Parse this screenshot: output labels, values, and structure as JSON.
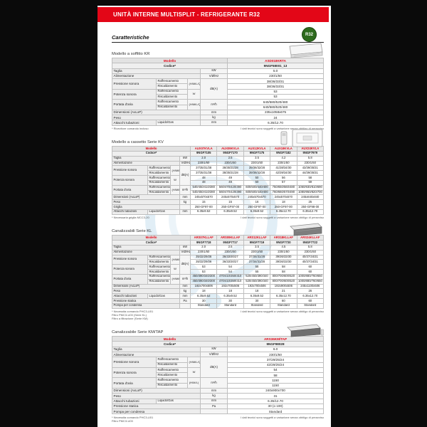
{
  "banner": {
    "title": "UNITÀ INTERNE MULTISPLIT - REFRIGERANTE R32"
  },
  "badge": {
    "label": "R32"
  },
  "heading": "Caratteristiche",
  "footnote_right": "I dati tecnici sono soggetti a variazione senza obbligo di preavviso",
  "labels": {
    "model": "Modello",
    "code": "Codice*"
  },
  "colors": {
    "accent_red": "#e30617",
    "badge_green": "#2e6b1e",
    "watermark_blue": "#bcd9ea",
    "page_bg": "#ffffff",
    "outer_bg": "#0a0a0a"
  },
  "sections": [
    {
      "title": "Modello a soffitto KR",
      "image": "ceiling-unit",
      "models": [
        "ASD018KRTA"
      ],
      "codes": [
        "9NGF58001_13"
      ],
      "rows": [
        {
          "label": "Taglia",
          "unit": "kW",
          "values": [
            "5.0"
          ]
        },
        {
          "label": "Alimentazione",
          "unit": "V/Ø/Hz",
          "values": [
            "230/1/50"
          ]
        },
        {
          "label": "Pressione sonora",
          "subs": [
            "Raffrescamento",
            "Riscaldamento"
          ],
          "qual": "(H/M/L/Q)",
          "unit": "dB(A)",
          "unitspan": 4,
          "values": [
            [
              "38/36/33/31"
            ],
            [
              "38/36/33/31"
            ]
          ]
        },
        {
          "label": "Potenza sonora",
          "subs": [
            "Raffrescamento",
            "Riscaldamento"
          ],
          "qual": "W",
          "nounit": true,
          "values": [
            [
              "53"
            ],
            [
              "53"
            ]
          ]
        },
        {
          "label": "Portata d'aria",
          "subs": [
            "Raffrescamento",
            "Riscaldamento"
          ],
          "qual": "(H/M/L/Q)",
          "unit": "m³/h",
          "values": [
            [
              "640/580/520/480"
            ],
            [
              "640/580/520/480"
            ]
          ]
        },
        {
          "label": "Dimensioni (AxLxP)",
          "unit": "mm",
          "values": [
            "235x1058x675"
          ]
        },
        {
          "label": "Peso",
          "unit": "kg",
          "values": [
            "24"
          ]
        },
        {
          "label": "Attacchi tubazioni",
          "sub1": "Liquido/Gas",
          "unit": "mm",
          "values": [
            "6.35/12.70"
          ]
        }
      ],
      "footnotes": [
        "* Ricevitore comando incluso"
      ]
    },
    {
      "title": "Modello a cassetto Serie KV",
      "image": "cassette-unit",
      "models": [
        "AUX07KVLA",
        "AUX09KVLA",
        "AUX12KVLA",
        "AUX18KVLA",
        "AUX24KVLA"
      ],
      "codes": [
        "9NGF7105",
        "9NGF7170",
        "9NGF7175",
        "9NGF7182",
        "9NGF7979"
      ],
      "rows": [
        {
          "label": "Taglia",
          "unit": "kW",
          "values": [
            "2.0",
            "2.5",
            "3.5",
            "4.2",
            "5.8"
          ]
        },
        {
          "label": "Alimentazione",
          "unit": "V/Ø/Hz",
          "values": [
            "230/1/50",
            "230/1/50",
            "230/1/50",
            "230/1/50",
            "230/1/50"
          ]
        },
        {
          "label": "Pressione sonora",
          "subs": [
            "Raffrescamento",
            "Riscaldamento"
          ],
          "qual": "(H/M/L/Q)",
          "unit": "dB(A)",
          "unitspan": 4,
          "values": [
            [
              "37/35/31/28",
              "38/35/31/28",
              "39/36/32/28",
              "41/38/34/30",
              "43/39/35/31"
            ],
            [
              "37/35/31/28",
              "38/35/31/28",
              "39/36/32/28",
              "42/39/34/30",
              "44/39/35/31"
            ]
          ]
        },
        {
          "label": "Potenza sonora",
          "subs": [
            "Raffrescamento",
            "Riscaldamento"
          ],
          "qual": "W",
          "nounit": true,
          "values": [
            [
              "48",
              "49",
              "50",
              "56",
              "58"
            ],
            [
              "48",
              "49",
              "50",
              "57",
              "59"
            ]
          ]
        },
        {
          "label": "Portata d'aria",
          "subs": [
            "Raffrescamento",
            "Riscaldamento"
          ],
          "qual": "(H/M/L/Q)",
          "unit": "m³/h",
          "values": [
            [
              "540/450/410/380",
              "560/470/420/390",
              "600/500/440/400",
              "750/650/560/480",
              "1060/930/810/690"
            ],
            [
              "540/450/410/380",
              "560/470/420/390",
              "600/500/440/400",
              "760/660/570/490",
              "1080/950/820/700"
            ]
          ]
        },
        {
          "label": "Dimensioni (AxLxP)",
          "unit": "mm",
          "values": [
            "245x570x570",
            "245x570x570",
            "245x570x570",
            "245x570x570",
            "245x840x840"
          ]
        },
        {
          "label": "Peso",
          "unit": "kg",
          "values": [
            "15",
            "15",
            "16",
            "18",
            "25"
          ]
        },
        {
          "label": "Griglia",
          "unit": "",
          "values": [
            "250-GF97-00",
            "250-GF97-00",
            "250-GF97-00",
            "250-GF97-00",
            "250-GF98-00"
          ]
        },
        {
          "label": "Attacchi tubazioni",
          "sub1": "Liquido/Gas",
          "unit": "mm",
          "values": [
            "6.35x9.52",
            "6.35x9.52",
            "6.35x9.52",
            "6.35x12.70",
            "6.35x12.70"
          ]
        }
      ],
      "footnotes": [
        "* Necessaria griglia MCC3-20"
      ]
    },
    {
      "title": "Canalizzabili Serie KL",
      "image": "duct-unit",
      "models": [
        "ARS07KLLAF",
        "ARS09KLLAF",
        "ARS12KLLAF",
        "ARS18KLLAF",
        "ARS24KLLAF"
      ],
      "codes": [
        "9NGF7718",
        "9NGF7717",
        "9NGF7719",
        "9NGF7720",
        "9NGF7722"
      ],
      "rows": [
        {
          "label": "Taglia",
          "unit": "kW",
          "values": [
            "2.0",
            "2.5",
            "3.5",
            "4.5",
            "5.8"
          ]
        },
        {
          "label": "Alimentazione",
          "unit": "V/Ø/Hz",
          "values": [
            "230/1/50",
            "230/1/50",
            "230/1/50",
            "230/1/50",
            "230/1/50"
          ]
        },
        {
          "label": "Pressione sonora",
          "subs": [
            "Raffrescamento",
            "Riscaldamento"
          ],
          "qual": "(H/M/L/Q)",
          "unit": "dB(A)",
          "unitspan": 4,
          "values": [
            [
              "35/32/29/26",
              "36/33/30/27",
              "37/34/31/28",
              "39/36/33/30",
              "40/37/34/31"
            ],
            [
              "35/32/29/26",
              "36/33/30/27",
              "37/34/31/28",
              "39/36/33/30",
              "40/37/34/31"
            ]
          ]
        },
        {
          "label": "Potenza sonora",
          "subs": [
            "Raffrescamento",
            "Riscaldamento"
          ],
          "qual": "W",
          "nounit": true,
          "values": [
            [
              "53",
              "54",
              "55",
              "58",
              "60"
            ],
            [
              "53",
              "54",
              "55",
              "58",
              "60"
            ]
          ]
        },
        {
          "label": "Portata d'aria",
          "subs": [
            "Raffrescamento",
            "Riscaldamento"
          ],
          "qual": "(H/M/L/Q)",
          "unit": "m³/h",
          "values": [
            [
              "450/390/340/300",
              "470/410/350/310",
              "520/450/390/340",
              "800/700/600/520",
              "1000/880/760/650"
            ],
            [
              "450/390/340/300",
              "470/410/350/310",
              "520/450/390/340",
              "800/700/600/520",
              "1000/880/760/650"
            ]
          ]
        },
        {
          "label": "Dimensioni (AxLxP)",
          "unit": "mm",
          "values": [
            "192x700x506",
            "192x700x506",
            "192x700x506",
            "192x900x506",
            "245x1100x506"
          ]
        },
        {
          "label": "Peso",
          "unit": "kg",
          "values": [
            "18",
            "18",
            "18",
            "21",
            "26"
          ]
        },
        {
          "label": "Attacchi tubazioni",
          "sub1": "Liquido/Gas",
          "unit": "mm",
          "values": [
            "6.35x9.52",
            "6.35x9.52",
            "6.35x9.52",
            "6.35x12.70",
            "6.35x12.70"
          ]
        },
        {
          "label": "Pressione statica",
          "unit": "Pa",
          "values": [
            "30",
            "30",
            "30",
            "60",
            "60"
          ]
        },
        {
          "label": "Pompa per condensa",
          "unit": "",
          "values": [
            "Standard",
            "Standard",
            "Standard",
            "Standard",
            "Standard"
          ]
        }
      ],
      "footnotes": [
        "* Necessita comando PHC3-U01",
        "Filtro PMC3-U03 (Serie KL)",
        "Filtro a filtrazione (Serie KM)"
      ]
    },
    {
      "title": "Canalizzabile Serie KM/TAP",
      "image": "duct-unit-km",
      "models": [
        "ARS36KM/TAP"
      ],
      "codes": [
        "9NGF98028"
      ],
      "rows": [
        {
          "label": "Taglia",
          "unit": "kW",
          "values": [
            "6.0"
          ]
        },
        {
          "label": "Alimentazione",
          "unit": "V/Ø/Hz",
          "values": [
            "230/1/50"
          ]
        },
        {
          "label": "Pressione sonora",
          "subs": [
            "Raffrescamento",
            "Riscaldamento"
          ],
          "qual": "(H/M/L/Q)",
          "unit": "dB(A)",
          "unitspan": 4,
          "values": [
            [
              "37/29/25/24"
            ],
            [
              "42/29/25/24"
            ]
          ]
        },
        {
          "label": "Potenza sonora",
          "subs": [
            "Raffrescamento",
            "Riscaldamento"
          ],
          "qual": "W",
          "nounit": true,
          "values": [
            [
              "54"
            ],
            [
              "58"
            ]
          ]
        },
        {
          "label": "Portata d'aria",
          "subs": [
            "Raffrescamento",
            "Riscaldamento"
          ],
          "qual": "(H/M/L)",
          "unit": "m³/h",
          "values": [
            [
              "1150"
            ],
            [
              "1150"
            ]
          ]
        },
        {
          "label": "Dimensioni (AxLxP)",
          "unit": "mm",
          "values": [
            "240x900x700"
          ]
        },
        {
          "label": "Peso",
          "unit": "kg",
          "values": [
            "31"
          ]
        },
        {
          "label": "Attacchi tubazioni",
          "sub1": "Liquido/Gas",
          "unit": "mm",
          "values": [
            "6.35/12.70"
          ]
        },
        {
          "label": "Pressione statica",
          "unit": "Pa",
          "values": [
            "30 (o 100)"
          ]
        },
        {
          "label": "Pompa per condensa",
          "unit": "",
          "values": [
            "Standard"
          ]
        }
      ],
      "footnotes": [
        "* Necessita comando PHC3-U01",
        "Filtro PMC3-U03"
      ]
    }
  ]
}
